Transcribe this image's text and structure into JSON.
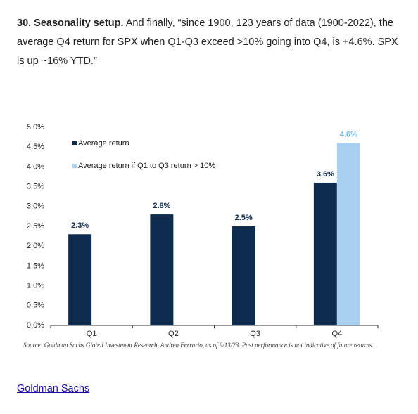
{
  "paragraph": {
    "lead": "30. Seasonality setup.",
    "text": "And finally, “since 1900, 123 years of data (1900-2022), the average Q4 return for SPX when Q1-Q3 exceed >10% going into Q4, is +4.6%. SPX is up ~16% YTD.”"
  },
  "chart_data": {
    "type": "bar",
    "categories": [
      "Q1",
      "Q2",
      "Q3",
      "Q4"
    ],
    "series": [
      {
        "name": "Average return",
        "color": "#0e2b50",
        "values": [
          2.3,
          2.8,
          2.5,
          3.6
        ],
        "value_labels": [
          "2.3%",
          "2.8%",
          "2.5%",
          "3.6%"
        ]
      },
      {
        "name": "Average return if Q1 to Q3 return > 10%",
        "color": "#a8d1f1",
        "values": [
          null,
          null,
          null,
          4.6
        ],
        "value_labels": [
          null,
          null,
          null,
          "4.6%"
        ]
      }
    ],
    "ylim": [
      0,
      5
    ],
    "yticks": [
      {
        "value": 0,
        "label": "0.0%"
      },
      {
        "value": 0.5,
        "label": "0.5%"
      },
      {
        "value": 1,
        "label": "1.0%"
      },
      {
        "value": 1.5,
        "label": "1.5%"
      },
      {
        "value": 2,
        "label": "2.0%"
      },
      {
        "value": 2.5,
        "label": "2.5%"
      },
      {
        "value": 3,
        "label": "3.0%"
      },
      {
        "value": 3.5,
        "label": "3.5%"
      },
      {
        "value": 4,
        "label": "4.0%"
      },
      {
        "value": 4.5,
        "label": "4.5%"
      },
      {
        "value": 5,
        "label": "5.0%"
      }
    ],
    "source": "Source: Goldman Sachs Global Investment Research, Andrea Ferrario, as of 9/13/23. Past performance is not indicative of future returns."
  },
  "link": "Goldman Sachs"
}
